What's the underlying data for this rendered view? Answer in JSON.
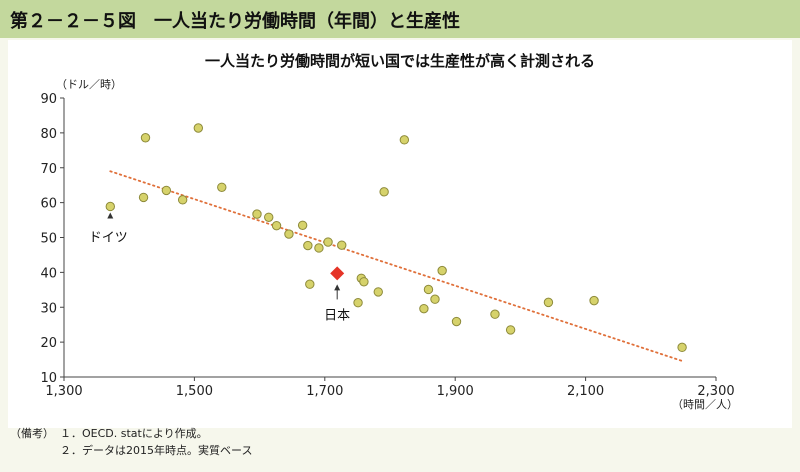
{
  "header": {
    "title": "第２－２－５図　一人当たり労働時間（年間）と生産性"
  },
  "notes": {
    "tag": "（備考）",
    "lines": [
      "１．OECD. statにより作成。",
      "２．データは2015年時点。実質ベース"
    ]
  },
  "chart_data": {
    "type": "scatter",
    "title": "一人当たり労働時間が短い国では生産性が高く計測される",
    "xlabel": "（時間／人）",
    "ylabel": "（ドル／時）",
    "xlim": [
      1300,
      2300
    ],
    "ylim": [
      10,
      90
    ],
    "xticks": [
      1300,
      1500,
      1700,
      1900,
      2100,
      2300
    ],
    "xtick_labels": [
      "1,300",
      "1,500",
      "1,700",
      "1,900",
      "2,100",
      "2,300"
    ],
    "yticks": [
      10,
      20,
      30,
      40,
      50,
      60,
      70,
      80,
      90
    ],
    "points": [
      {
        "x": 1371,
        "y": 58.9
      },
      {
        "x": 1422,
        "y": 61.5
      },
      {
        "x": 1425,
        "y": 78.6
      },
      {
        "x": 1457,
        "y": 63.5
      },
      {
        "x": 1482,
        "y": 60.8
      },
      {
        "x": 1506,
        "y": 81.4
      },
      {
        "x": 1542,
        "y": 64.4
      },
      {
        "x": 1596,
        "y": 56.7
      },
      {
        "x": 1614,
        "y": 55.8
      },
      {
        "x": 1626,
        "y": 53.4
      },
      {
        "x": 1645,
        "y": 51.0
      },
      {
        "x": 1666,
        "y": 53.5
      },
      {
        "x": 1674,
        "y": 47.7
      },
      {
        "x": 1677,
        "y": 36.6
      },
      {
        "x": 1691,
        "y": 47.0
      },
      {
        "x": 1705,
        "y": 48.7
      },
      {
        "x": 1726,
        "y": 47.8
      },
      {
        "x": 1751,
        "y": 31.3
      },
      {
        "x": 1756,
        "y": 38.3
      },
      {
        "x": 1760,
        "y": 37.3
      },
      {
        "x": 1782,
        "y": 34.4
      },
      {
        "x": 1791,
        "y": 63.1
      },
      {
        "x": 1822,
        "y": 78.0
      },
      {
        "x": 1852,
        "y": 29.6
      },
      {
        "x": 1859,
        "y": 35.1
      },
      {
        "x": 1869,
        "y": 32.3
      },
      {
        "x": 1880,
        "y": 40.5
      },
      {
        "x": 1902,
        "y": 25.9
      },
      {
        "x": 1961,
        "y": 28.0
      },
      {
        "x": 1985,
        "y": 23.5
      },
      {
        "x": 2043,
        "y": 31.4
      },
      {
        "x": 2113,
        "y": 31.9
      },
      {
        "x": 2248,
        "y": 18.5
      }
    ],
    "highlight": {
      "label": "日本",
      "x": 1719,
      "y": 39.7,
      "color": "#e53427"
    },
    "annotations": [
      {
        "label": "ドイツ",
        "x": 1371,
        "y": 58.9
      }
    ],
    "trendline": {
      "x": [
        1371,
        2248
      ],
      "y": [
        69.0,
        14.6
      ],
      "color": "#e0703a",
      "style": "dotted"
    },
    "marker_color": "#d6d26b",
    "grid": false
  }
}
